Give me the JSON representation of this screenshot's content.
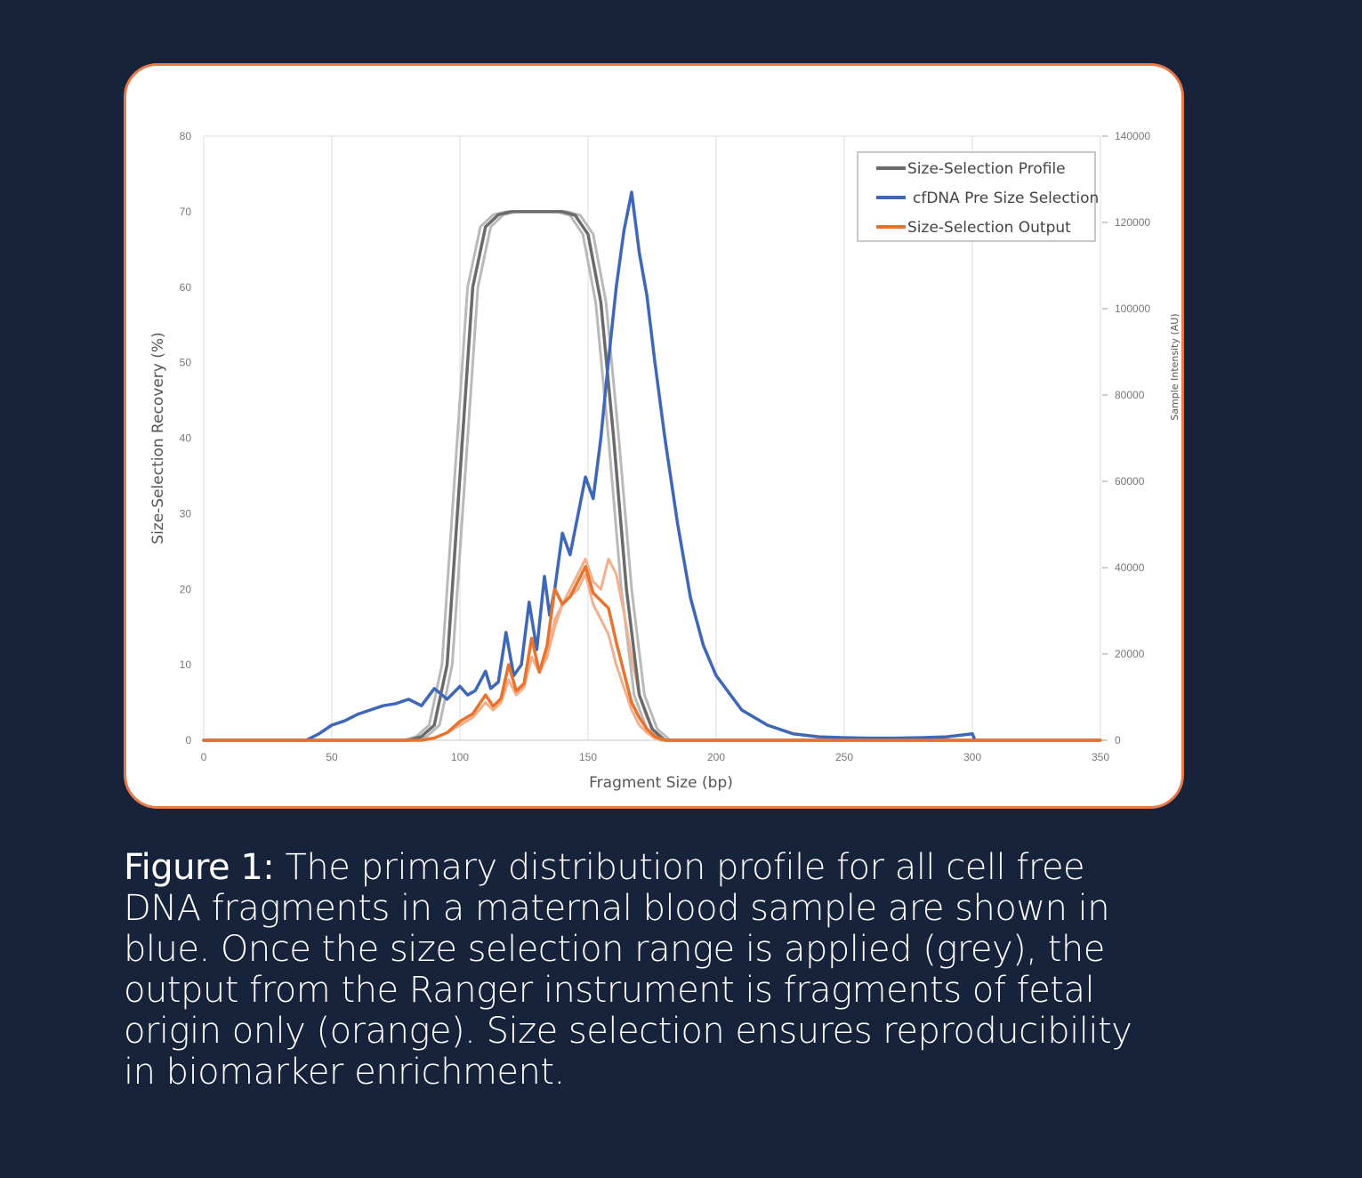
{
  "figure_caption": {
    "lead": "Figure 1:",
    "text": " The primary distribution profile for all cell free DNA fragments in a maternal blood sample are shown in blue. Once the size selection range is applied (grey), the output from the Ranger instrument is fragments of fetal origin only (orange). Size selection ensures reproducibility in biomarker enrichment."
  },
  "colors": {
    "page_background": "#17223b",
    "card_border": "#e8794a",
    "grey_series": "#6b6b6b",
    "grey_replicate": "#b9b9b9",
    "blue_series": "#3f67b8",
    "orange_series": "#e8732f",
    "orange_replicate": "#f2b08c"
  },
  "chart_data": {
    "type": "line",
    "title": "",
    "xlabel": "Fragment Size (bp)",
    "ylabel": "Size-Selection Recovery (%)",
    "y2label": "Sample Intensity (AU)",
    "xlim": [
      0,
      350
    ],
    "ylim": [
      0,
      80
    ],
    "y2lim": [
      0,
      140000
    ],
    "x_ticks": [
      0,
      50,
      100,
      150,
      200,
      250,
      300,
      350
    ],
    "y_ticks": [
      0,
      10,
      20,
      30,
      40,
      50,
      60,
      70,
      80
    ],
    "y2_ticks": [
      0,
      20000,
      40000,
      60000,
      80000,
      100000,
      120000,
      140000
    ],
    "grid": "vertical",
    "legend_position": "top-right",
    "series": [
      {
        "name": "Size-Selection Profile",
        "axis": "left",
        "color": "#6b6b6b",
        "x": [
          0,
          80,
          85,
          90,
          95,
          100,
          105,
          110,
          115,
          120,
          125,
          130,
          135,
          140,
          145,
          150,
          155,
          160,
          165,
          170,
          175,
          180,
          350
        ],
        "y": [
          0,
          0,
          0.5,
          2,
          10,
          35,
          60,
          68,
          69.6,
          70,
          70,
          70,
          70,
          70,
          69.5,
          67,
          58,
          40,
          20,
          6,
          1.5,
          0,
          0
        ]
      },
      {
        "name": "",
        "axis": "left",
        "color": "#b9b9b9",
        "x": [
          0,
          78,
          83,
          88,
          93,
          98,
          103,
          108,
          113,
          118,
          123,
          128,
          133,
          138,
          143,
          148,
          153,
          158,
          163,
          168,
          173,
          178,
          350
        ],
        "y": [
          0,
          0,
          0.5,
          2,
          10,
          35,
          60,
          68,
          69.6,
          70,
          70,
          70,
          70,
          70,
          69.5,
          67,
          58,
          40,
          20,
          6,
          1.5,
          0,
          0
        ]
      },
      {
        "name": "",
        "axis": "left",
        "color": "#b9b9b9",
        "x": [
          0,
          82,
          87,
          92,
          97,
          102,
          107,
          112,
          117,
          122,
          127,
          132,
          137,
          142,
          147,
          152,
          157,
          162,
          167,
          172,
          177,
          182,
          350
        ],
        "y": [
          0,
          0,
          0.5,
          2,
          10,
          35,
          60,
          68,
          69.6,
          70,
          70,
          70,
          70,
          70,
          69.5,
          67,
          58,
          40,
          20,
          6,
          1.5,
          0,
          0
        ]
      },
      {
        "name": "cfDNA Pre Size Selection",
        "axis": "right",
        "color": "#3f67b8",
        "x": [
          0,
          40,
          45,
          50,
          55,
          60,
          65,
          70,
          75,
          80,
          85,
          90,
          95,
          100,
          103,
          106,
          110,
          112,
          115,
          118,
          121,
          124,
          127,
          130,
          133,
          135,
          137,
          140,
          143,
          146,
          149,
          152,
          155,
          158,
          161,
          164,
          167,
          170,
          173,
          176,
          180,
          185,
          190,
          195,
          200,
          210,
          220,
          230,
          240,
          250,
          260,
          270,
          280,
          290,
          300,
          301
        ],
        "y": [
          0,
          0,
          1500,
          3500,
          4500,
          6000,
          7000,
          8000,
          8500,
          9500,
          8000,
          12000,
          9500,
          12500,
          10500,
          11500,
          16000,
          12000,
          13500,
          25000,
          15000,
          17500,
          32000,
          21000,
          38000,
          29000,
          35000,
          48000,
          43000,
          52000,
          61000,
          56000,
          70000,
          88000,
          105000,
          118000,
          127000,
          113000,
          103000,
          88000,
          70000,
          50000,
          33000,
          22000,
          15000,
          7000,
          3500,
          1500,
          800,
          600,
          500,
          500,
          600,
          800,
          1500,
          0
        ]
      },
      {
        "name": "Size-Selection Output",
        "axis": "left",
        "color": "#e8732f",
        "x": [
          0,
          85,
          90,
          95,
          100,
          105,
          110,
          113,
          116,
          119,
          122,
          125,
          128,
          131,
          134,
          137,
          140,
          143,
          146,
          149,
          152,
          155,
          158,
          161,
          164,
          167,
          170,
          173,
          176,
          180,
          185,
          350
        ],
        "y": [
          0,
          0,
          0.3,
          1,
          2.5,
          3.5,
          6,
          4.5,
          5.5,
          10,
          6.5,
          7.5,
          13.5,
          9,
          12.5,
          20,
          18,
          19,
          21,
          23,
          19.5,
          18.5,
          17.5,
          13,
          9,
          5,
          3,
          1.5,
          0.5,
          0,
          0,
          0
        ]
      },
      {
        "name": "",
        "axis": "left",
        "color": "#f2b08c",
        "x": [
          0,
          85,
          90,
          95,
          100,
          105,
          110,
          113,
          116,
          119,
          122,
          125,
          128,
          131,
          134,
          137,
          140,
          143,
          146,
          149,
          152,
          155,
          158,
          161,
          164,
          167,
          170,
          173,
          176,
          180,
          185,
          350
        ],
        "y": [
          0,
          0,
          0.3,
          1,
          2,
          3,
          5,
          4,
          5,
          8,
          6,
          7,
          11,
          9,
          11,
          15,
          18,
          20,
          22,
          24,
          21,
          20,
          24,
          22,
          17,
          11,
          6,
          3,
          1,
          0,
          0,
          0
        ]
      },
      {
        "name": "",
        "axis": "left",
        "color": "#f2b08c",
        "x": [
          0,
          85,
          90,
          95,
          100,
          105,
          110,
          113,
          116,
          119,
          122,
          125,
          128,
          131,
          134,
          137,
          140,
          143,
          146,
          149,
          152,
          155,
          158,
          161,
          164,
          167,
          170,
          173,
          176,
          180,
          185,
          350
        ],
        "y": [
          0,
          0,
          0.3,
          1,
          2,
          3,
          5,
          4,
          5,
          8,
          6,
          7,
          11,
          9,
          11,
          16,
          18,
          19,
          20,
          22,
          18,
          16,
          14,
          10,
          7,
          4,
          2,
          1,
          0.3,
          0,
          0,
          0
        ]
      }
    ]
  }
}
